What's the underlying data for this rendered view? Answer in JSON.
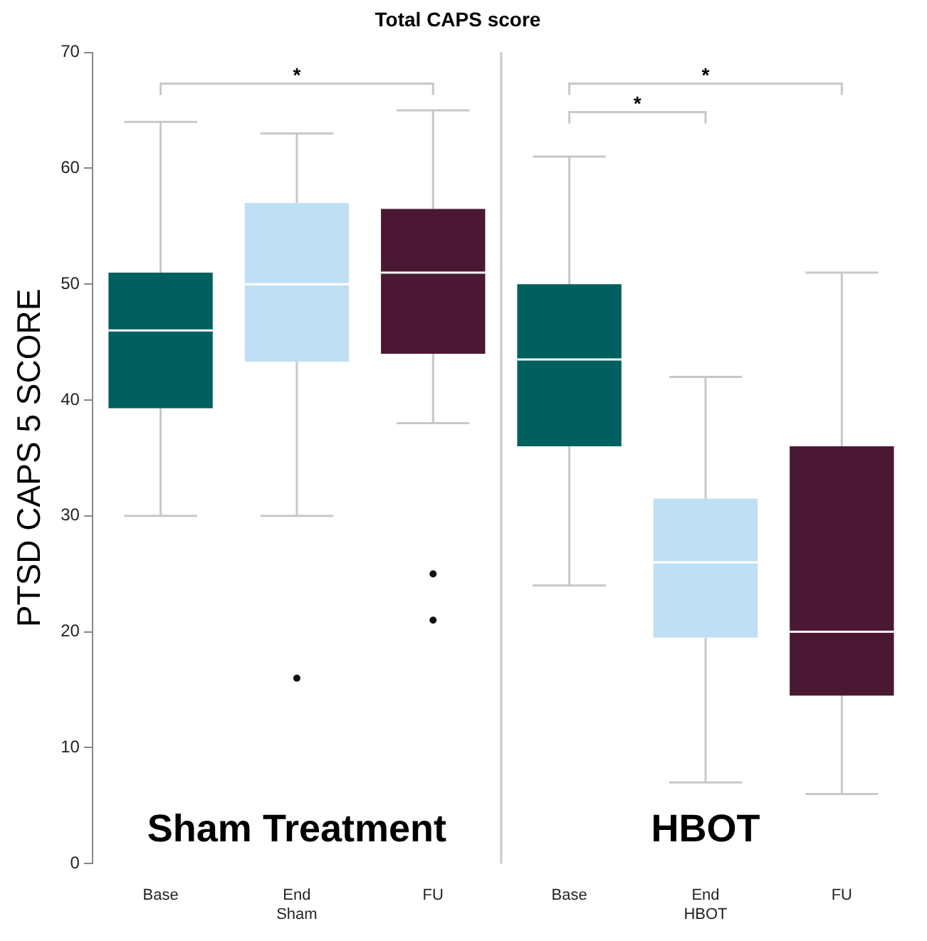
{
  "chart_data": {
    "type": "box",
    "title": "Total CAPS score",
    "ylabel": "PTSD CAPS 5 SCORE",
    "categories": [
      "Base",
      "End\nSham",
      "FU",
      "Base",
      "End\nHBOT",
      "FU"
    ],
    "colors": [
      "#00605f",
      "#bfe0f4",
      "#4a1832",
      "#00605f",
      "#bfe0f4",
      "#4a1832"
    ],
    "boxes": [
      {
        "low": 30,
        "q1": 39.3,
        "median": 46,
        "q3": 51,
        "high": 64
      },
      {
        "low": 30,
        "q1": 43.3,
        "median": 50,
        "q3": 57,
        "high": 63,
        "outliers": [
          16
        ]
      },
      {
        "low": 38,
        "q1": 44,
        "median": 51,
        "q3": 56.5,
        "high": 65,
        "outliers": [
          25,
          21
        ]
      },
      {
        "low": 24,
        "q1": 36,
        "median": 43.5,
        "q3": 50,
        "high": 61
      },
      {
        "low": 7,
        "q1": 19.5,
        "median": 26,
        "q3": 31.5,
        "high": 42
      },
      {
        "low": 6,
        "q1": 14.5,
        "median": 20,
        "q3": 36,
        "high": 51
      }
    ],
    "ylim": [
      0,
      70
    ],
    "yticks": [
      0,
      10,
      20,
      30,
      40,
      50,
      60,
      70
    ],
    "grid": false,
    "legend": false,
    "annotations": [
      "*",
      "*",
      "*",
      "Sham Treatment",
      "HBOT"
    ]
  }
}
